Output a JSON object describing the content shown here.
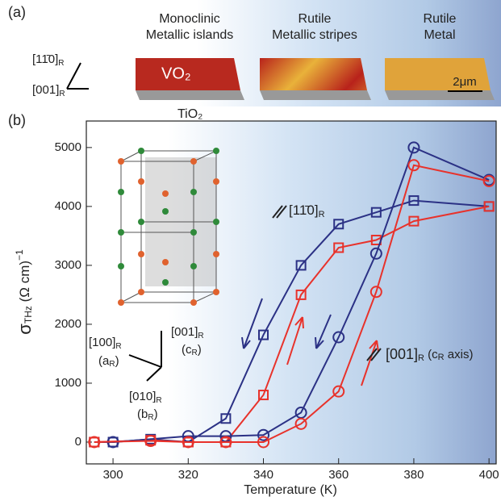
{
  "panel_a": {
    "label": "(a)",
    "film_1": [
      "Monoclinic",
      "Metallic islands"
    ],
    "film_2": [
      "Rutile",
      "Metallic stripes"
    ],
    "film_3": [
      "Rutile",
      "Metal"
    ],
    "film": "VO₂",
    "substrate": "TiO₂",
    "scale_bar": "2μm",
    "axis_1": {
      "text": "[11̄0]",
      "sub": "R"
    },
    "axis_2": {
      "text": "[001]",
      "sub": "R"
    }
  },
  "inset": {
    "a": {
      "text": "[100]",
      "sub": "R",
      "short": "(a",
      "short_sub": "R",
      "close": ")"
    },
    "c": {
      "text": "[001]",
      "sub": "R",
      "short": "(c",
      "short_sub": "R",
      "close": ")"
    },
    "b": {
      "text": "[010]",
      "sub": "R",
      "short": "(b",
      "short_sub": "R",
      "close": ")"
    }
  },
  "chart_data": {
    "type": "line",
    "panel_label": "(b)",
    "x_label": "Temperature (K)",
    "y_label": {
      "symbol": "σ",
      "sub": "THz",
      "unit": "(Ω cm)",
      "sup": "−1"
    },
    "annotations": [
      {
        "text": "[11̄0]",
        "sub": "R"
      },
      {
        "text": "[001]",
        "sub": "R",
        "after": " (c",
        "after_sub": "R",
        "end": " axis)"
      }
    ],
    "xlim": [
      292.9,
      401.9
    ],
    "ylim": [
      -370,
      5450
    ],
    "xticks": [
      300,
      320,
      340,
      360,
      380,
      400
    ],
    "yticks": [
      0,
      1000,
      2000,
      3000,
      4000,
      5000
    ],
    "series": [
      {
        "color": "#2b3185",
        "marker": "square",
        "x": [
          295,
          300,
          310,
          320,
          330,
          340,
          350,
          360,
          370,
          380,
          400
        ],
        "values": [
          0,
          0,
          50,
          0,
          400,
          1820,
          3000,
          3700,
          3900,
          4100,
          4000
        ]
      },
      {
        "color": "#e8322b",
        "marker": "square",
        "x": [
          295,
          310,
          320,
          330,
          340,
          350,
          360,
          370,
          380,
          400
        ],
        "values": [
          0,
          30,
          0,
          0,
          800,
          2500,
          3300,
          3430,
          3750,
          4000
        ]
      },
      {
        "color": "#2b3185",
        "marker": "circle",
        "x": [
          300,
          320,
          330,
          340,
          350,
          360,
          370,
          380,
          400
        ],
        "values": [
          0,
          100,
          100,
          120,
          500,
          1780,
          3200,
          5000,
          4450
        ]
      },
      {
        "color": "#e8322b",
        "marker": "circle",
        "x": [
          295,
          310,
          320,
          330,
          340,
          350,
          360,
          370,
          380,
          400
        ],
        "values": [
          0,
          20,
          0,
          0,
          0,
          310,
          860,
          2550,
          4700,
          4430
        ]
      }
    ]
  }
}
